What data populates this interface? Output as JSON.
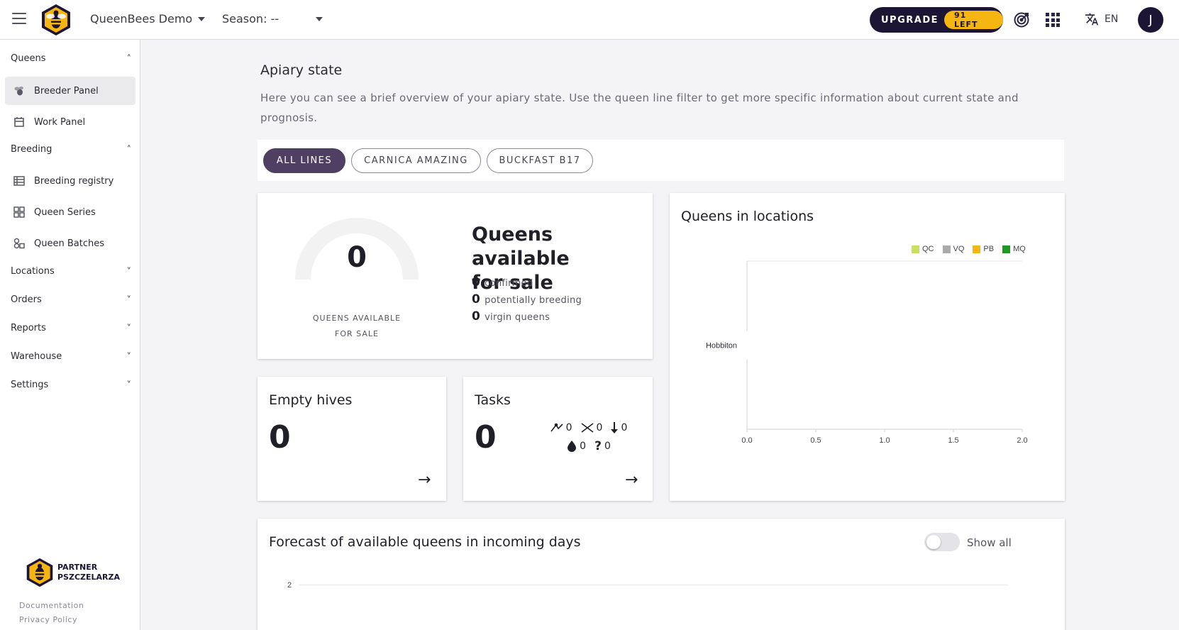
{
  "topbar": {
    "org_name": "QueenBees Demo",
    "season_label": "Season: --",
    "upgrade_label": "UPGRADE",
    "upgrade_badge": "91 LEFT",
    "language": "EN",
    "avatar_initial": "J"
  },
  "sidebar": {
    "groups": {
      "queens": "Queens",
      "breeding": "Breeding",
      "locations": "Locations",
      "orders": "Orders",
      "reports": "Reports",
      "warehouse": "Warehouse",
      "settings": "Settings"
    },
    "items": {
      "breeder_panel": "Breeder Panel",
      "work_panel": "Work Panel",
      "breeding_registry": "Breeding registry",
      "queen_series": "Queen Series",
      "queen_batches": "Queen Batches"
    },
    "partner_line1": "PARTNER",
    "partner_line2": "PSZCZELARZA",
    "documentation": "Documentation",
    "privacy_policy": "Privacy Policy"
  },
  "main": {
    "title": "Apiary state",
    "description": "Here you can see a brief overview of your apiary state. Use the queen line filter to get more specific information about current state and prognosis.",
    "filters": [
      "ALL LINES",
      "CARNICA AMAZING",
      "BUCKFAST B17"
    ],
    "queens_for_sale": {
      "gauge_value": "0",
      "gauge_label_line1": "QUEENS AVAILABLE",
      "gauge_label_line2": "FOR SALE",
      "title_line1": "Queens available",
      "title_line2": "for sale",
      "confirmed_value": "0",
      "confirmed_label": "confirmed",
      "potentially_breeding_value": "0",
      "potentially_breeding_label": "potentially breeding",
      "virgin_value": "0",
      "virgin_label": "virgin queens"
    },
    "empty_hives": {
      "title": "Empty hives",
      "value": "0"
    },
    "tasks": {
      "title": "Tasks",
      "value": "0",
      "counts": [
        "0",
        "0",
        "0",
        "0",
        "0"
      ]
    },
    "forecast": {
      "title": "Forecast of available queens in incoming days",
      "toggle_label": "Show all",
      "y_tick": "2"
    }
  },
  "chart_data": {
    "type": "bar",
    "title": "Queens in locations",
    "orientation": "horizontal",
    "categories": [
      "Hobbiton"
    ],
    "series": [
      {
        "name": "QC",
        "values": [
          0
        ],
        "color": "#c8e05a"
      },
      {
        "name": "VQ",
        "values": [
          0
        ],
        "color": "#aaaaaa"
      },
      {
        "name": "PB",
        "values": [
          0
        ],
        "color": "#f6b611"
      },
      {
        "name": "MQ",
        "values": [
          0
        ],
        "color": "#1e9a1e"
      }
    ],
    "xlim": [
      0,
      2
    ],
    "x_ticks": [
      "0.0",
      "0.5",
      "1.0",
      "1.5",
      "2.0"
    ],
    "legend": "top-right",
    "grid": false
  }
}
